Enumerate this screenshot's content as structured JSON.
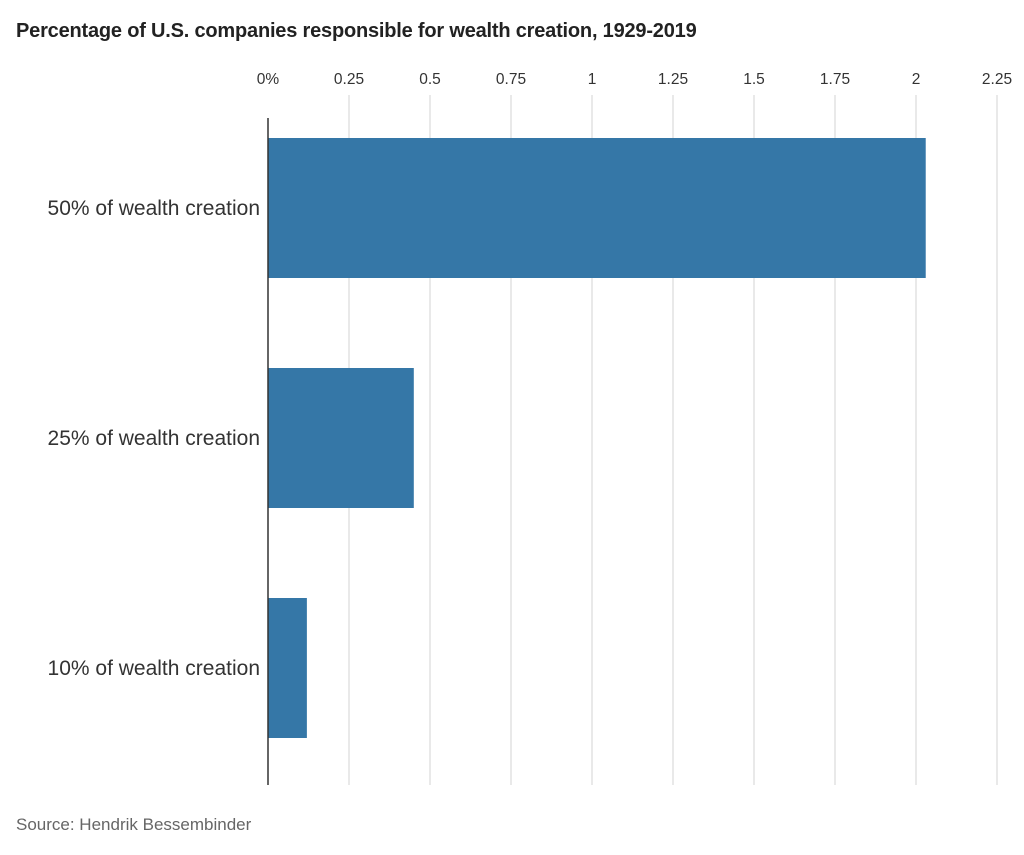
{
  "chart_data": {
    "type": "bar",
    "orientation": "horizontal",
    "title": "Percentage of U.S. companies responsible for wealth creation, 1929-2019",
    "source": "Source: Hendrik Bessembinder",
    "categories": [
      "50% of wealth creation",
      "25% of wealth creation",
      "10% of wealth creation"
    ],
    "values": [
      2.03,
      0.45,
      0.12
    ],
    "xlim": [
      0,
      2.25
    ],
    "x_ticks": [
      0,
      0.25,
      0.5,
      0.75,
      1,
      1.25,
      1.5,
      1.75,
      2,
      2.25
    ],
    "x_tick_labels": [
      "0%",
      "0.25",
      "0.5",
      "0.75",
      "1",
      "1.25",
      "1.5",
      "1.75",
      "2",
      "2.25"
    ],
    "x_axis_position": "top",
    "grid": true,
    "bar_color": "#3577a7"
  }
}
